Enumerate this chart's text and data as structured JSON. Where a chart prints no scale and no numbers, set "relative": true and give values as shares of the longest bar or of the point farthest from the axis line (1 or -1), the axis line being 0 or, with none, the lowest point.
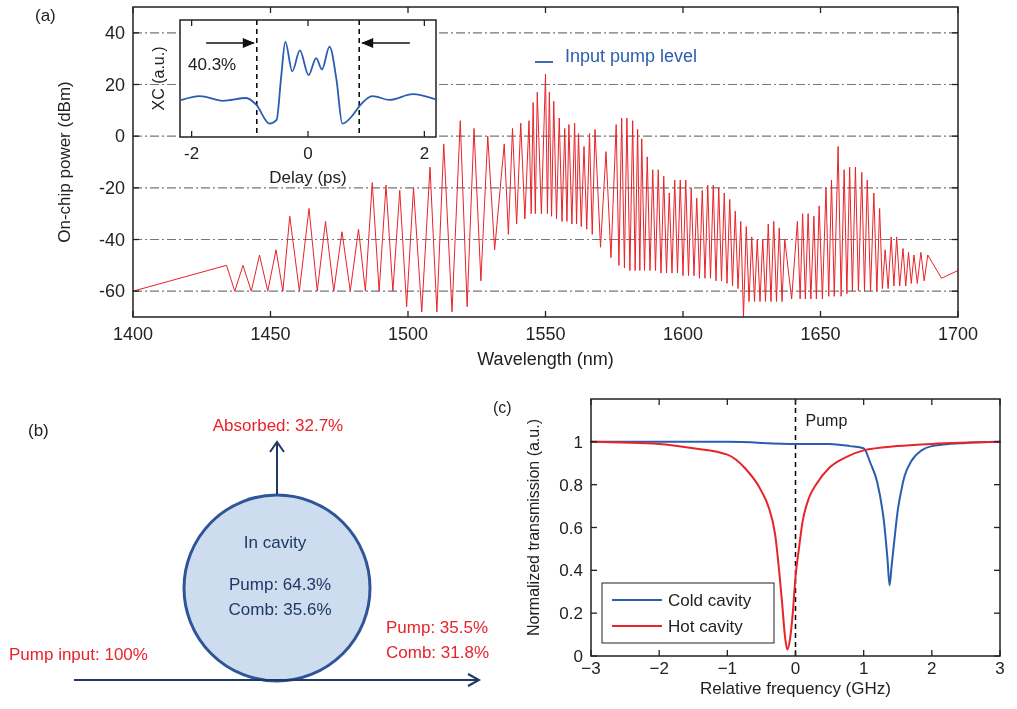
{
  "chart_data": [
    {
      "type": "line",
      "title": "(a)",
      "xlabel": "Wavelength (nm)",
      "ylabel": "On-chip power (dBm)",
      "xlim": [
        1400,
        1700
      ],
      "xticks": [
        1400,
        1450,
        1500,
        1550,
        1600,
        1650,
        1700
      ],
      "ylim": [
        -70,
        50
      ],
      "yticks": [
        -60,
        -40,
        -20,
        0,
        20,
        40
      ],
      "grid": "y",
      "series": [
        {
          "color": "#e8232a",
          "x": [
            1400,
            1434,
            1437,
            1440,
            1443,
            1446,
            1449,
            1452,
            1454.5,
            1457,
            1460.5,
            1464,
            1467,
            1470,
            1473,
            1476,
            1479,
            1482,
            1484.5,
            1487,
            1489.5,
            1492,
            1494.5,
            1497,
            1499.5,
            1502,
            1505,
            1508,
            1510.5,
            1513,
            1516,
            1519,
            1521.5,
            1524,
            1526.5,
            1529,
            1531.5,
            1535,
            1536.5,
            1538,
            1539.5,
            1541,
            1542.5,
            1544,
            1544.8,
            1545.5,
            1546.3,
            1547,
            1548.5,
            1550,
            1550.7,
            1551.4,
            1552.2,
            1553,
            1554,
            1555,
            1556,
            1557,
            1557.8,
            1558.5,
            1559.6,
            1560.6,
            1561.3,
            1562,
            1563,
            1564,
            1565,
            1566,
            1567,
            1568,
            1570,
            1572,
            1573.8,
            1575.7,
            1576.7,
            1577.7,
            1578.7,
            1579.6,
            1580.7,
            1581.7,
            1582.6,
            1583.5,
            1584.3,
            1585,
            1586,
            1587,
            1588,
            1589,
            1590,
            1591,
            1592,
            1593,
            1594,
            1595,
            1596,
            1597,
            1598,
            1599,
            1600,
            1601,
            1602,
            1603,
            1604,
            1605,
            1606,
            1607,
            1608,
            1609,
            1610,
            1611,
            1612,
            1613,
            1614,
            1615,
            1616,
            1617,
            1618,
            1619,
            1620,
            1621,
            1622,
            1623,
            1624,
            1625,
            1626,
            1627,
            1628,
            1629,
            1630,
            1631,
            1632,
            1633,
            1634,
            1635,
            1636,
            1637,
            1639.5,
            1641.6,
            1642.6,
            1643.5,
            1644.5,
            1645.5,
            1646.5,
            1647.6,
            1648.5,
            1649.5,
            1650.7,
            1652,
            1653,
            1654,
            1655,
            1656.4,
            1657.5,
            1658.6,
            1659.6,
            1660.6,
            1661.6,
            1662.7,
            1663.8,
            1665,
            1666,
            1667,
            1668.2,
            1669.4,
            1670.5,
            1671.5,
            1672.5,
            1673.5,
            1674.6,
            1675.7,
            1676.7,
            1677.7,
            1678.8,
            1680,
            1681,
            1682,
            1683,
            1684,
            1685.2,
            1686.5,
            1687.7,
            1689,
            1694,
            1700
          ],
          "values": [
            -60,
            -50,
            -60,
            -50,
            -60,
            -46,
            -60,
            -44,
            -60,
            -31,
            -60,
            -28,
            -60,
            -33,
            -60,
            -37,
            -60,
            -36,
            -60,
            -18,
            -60,
            -19,
            -60,
            -21,
            -66,
            -20,
            -68,
            -12,
            -68,
            -3,
            -68,
            6,
            -66,
            3,
            -56,
            0,
            -44,
            -3,
            -38,
            3,
            -34,
            5,
            -32,
            6,
            -30,
            13,
            -30,
            17,
            -30,
            24,
            -30,
            17,
            -31,
            13.5,
            -32,
            7,
            -33,
            3,
            -33,
            4.5,
            -34,
            5,
            -34,
            1,
            -35,
            -4,
            -36,
            1,
            -38,
            2.6,
            -43,
            -6,
            -47,
            4.5,
            -50,
            7,
            -51,
            7,
            -52,
            6,
            -52,
            2.6,
            -52,
            -1,
            -52,
            -8,
            -52,
            -13,
            -52,
            -13,
            -53,
            -15.5,
            -53,
            -22,
            -53,
            -17,
            -53,
            -17,
            -54,
            -17,
            -54,
            -20,
            -54,
            -24,
            -55,
            -21,
            -55,
            -19,
            -55,
            -19,
            -56,
            -20,
            -56,
            -22,
            -57,
            -24.5,
            -58,
            -29,
            -59,
            -33,
            -70,
            -35,
            -64,
            -39,
            -64,
            -40,
            -64,
            -40,
            -64,
            -34,
            -64,
            -33,
            -64,
            -35.5,
            -64,
            -40,
            -63,
            -33,
            -63,
            -30,
            -63,
            -30,
            -63,
            -31,
            -63,
            -27,
            -63,
            -20,
            -62,
            -17,
            -62,
            -4,
            -62,
            -13,
            -61,
            -12,
            -60,
            -12,
            -60,
            -14,
            -60,
            -17,
            -60,
            -22,
            -60,
            -28,
            -59,
            -44,
            -59,
            -39,
            -58,
            -39,
            -58,
            -43.5,
            -58,
            -45,
            -57,
            -46,
            -57,
            -45,
            -56,
            -46,
            -55,
            -52
          ]
        }
      ],
      "annotations": [
        "Input pump level"
      ]
    },
    {
      "type": "line",
      "xlabel": "Delay (ps)",
      "ylabel": "XC (a.u.)",
      "relative": true,
      "xlim": [
        -2.2,
        2.2
      ],
      "xticks": [
        -2,
        0,
        2
      ],
      "series": [
        {
          "color": "#2a5db0",
          "x": [
            -2.17,
            -1.86,
            -1.46,
            -1.06,
            -0.89,
            -0.66,
            -0.54,
            -0.46,
            -0.39,
            -0.27,
            -0.14,
            0.01,
            0.14,
            0.24,
            0.37,
            0.49,
            0.59,
            0.77,
            0.89,
            1.11,
            1.4,
            1.8,
            2.17
          ],
          "values": [
            0.39,
            0.43,
            0.38,
            0.41,
            0.34,
            0.14,
            0.18,
            0.64,
            1,
            0.69,
            0.91,
            0.65,
            0.83,
            0.71,
            0.95,
            0.6,
            0.14,
            0.23,
            0.33,
            0.43,
            0.39,
            0.45,
            0.4
          ]
        }
      ],
      "ref_lines": [
        {
          "axis": "x",
          "value": -0.88,
          "color": "#000000",
          "line_style": "dashed"
        },
        {
          "axis": "x",
          "value": 0.88,
          "color": "#000000",
          "line_style": "dashed"
        }
      ],
      "annotations": [
        "40.3%"
      ]
    },
    {
      "type": "other",
      "title": "(b)",
      "annotations": [
        "Absorbed: 32.7%",
        "In cavity",
        "Pump: 64.3%",
        "Comb: 35.6%",
        "Pump input: 100%",
        "Pump: 35.5%",
        "Comb: 31.8%"
      ]
    },
    {
      "type": "line",
      "title": "(c)",
      "xlabel": "Relative frequency (GHz)",
      "ylabel": "Normalized transmission (a.u.)",
      "xlim": [
        -3,
        3
      ],
      "xticks": [
        {
          "value": -3,
          "label": "−3"
        },
        {
          "value": -2,
          "label": "−2"
        },
        {
          "value": -1,
          "label": "−1"
        },
        0,
        1,
        2,
        3
      ],
      "ylim": [
        0,
        1.2
      ],
      "yticks": [
        0,
        0.2,
        0.4,
        0.6,
        0.8,
        1
      ],
      "legend": "bottom left",
      "series": [
        {
          "name": "Cold cavity",
          "color": "#2a5db0",
          "x": [
            -3,
            -1,
            0,
            0.5,
            0.8,
            1,
            1.1,
            1.2,
            1.3,
            1.35,
            1.38,
            1.41,
            1.45,
            1.5,
            1.55,
            1.6,
            1.7,
            1.85,
            2,
            2.5,
            3
          ],
          "values": [
            1,
            1,
            0.99,
            0.99,
            0.98,
            0.97,
            0.9,
            0.81,
            0.62,
            0.45,
            0.33,
            0.42,
            0.54,
            0.68,
            0.77,
            0.84,
            0.91,
            0.96,
            0.98,
            0.995,
            1
          ]
        },
        {
          "name": "Hot cavity",
          "color": "#e8232a",
          "x": [
            -3,
            -2,
            -1.5,
            -1,
            -0.75,
            -0.5,
            -0.4,
            -0.3,
            -0.2,
            -0.15,
            -0.12,
            -0.08,
            -0.04,
            0,
            0.05,
            0.1,
            0.2,
            0.3,
            0.5,
            0.75,
            1,
            1.5,
            2,
            3
          ],
          "values": [
            1,
            0.99,
            0.97,
            0.94,
            0.88,
            0.77,
            0.7,
            0.57,
            0.26,
            0.08,
            0.03,
            0.08,
            0.2,
            0.37,
            0.5,
            0.62,
            0.74,
            0.8,
            0.88,
            0.93,
            0.96,
            0.98,
            0.99,
            1
          ]
        }
      ],
      "ref_lines": [
        {
          "axis": "x",
          "value": 0,
          "label": "Pump",
          "color": "#000000",
          "line_style": "dashed"
        }
      ]
    }
  ]
}
